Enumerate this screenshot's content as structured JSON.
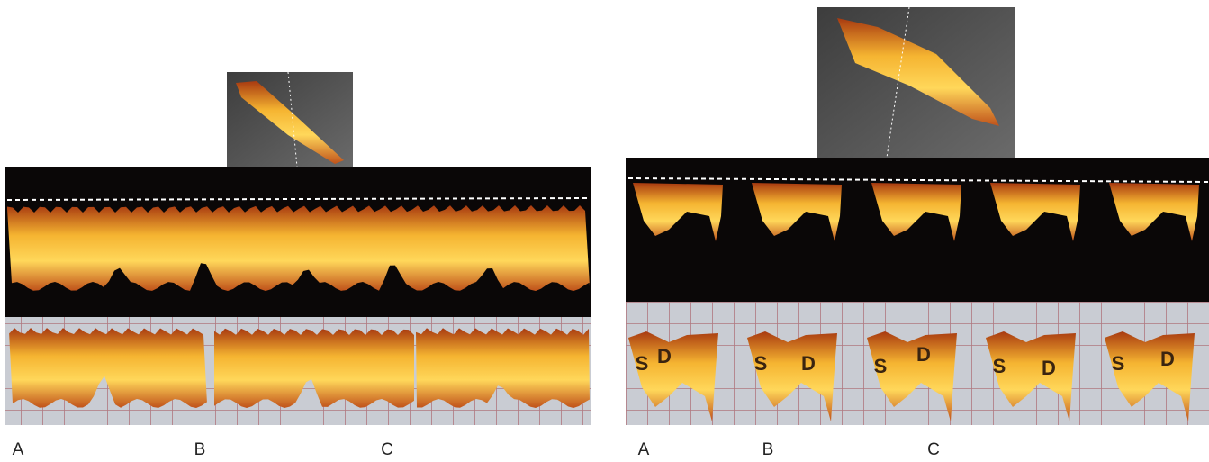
{
  "left": {
    "labels": [
      "A",
      "B",
      "C"
    ]
  },
  "right": {
    "labels": [
      "A",
      "B",
      "C"
    ],
    "waveform_labels": [
      [
        "S",
        "D"
      ],
      [
        "S",
        "D"
      ],
      [
        "S",
        "D"
      ],
      [
        "S",
        "D"
      ],
      [
        "S",
        "D"
      ]
    ]
  }
}
